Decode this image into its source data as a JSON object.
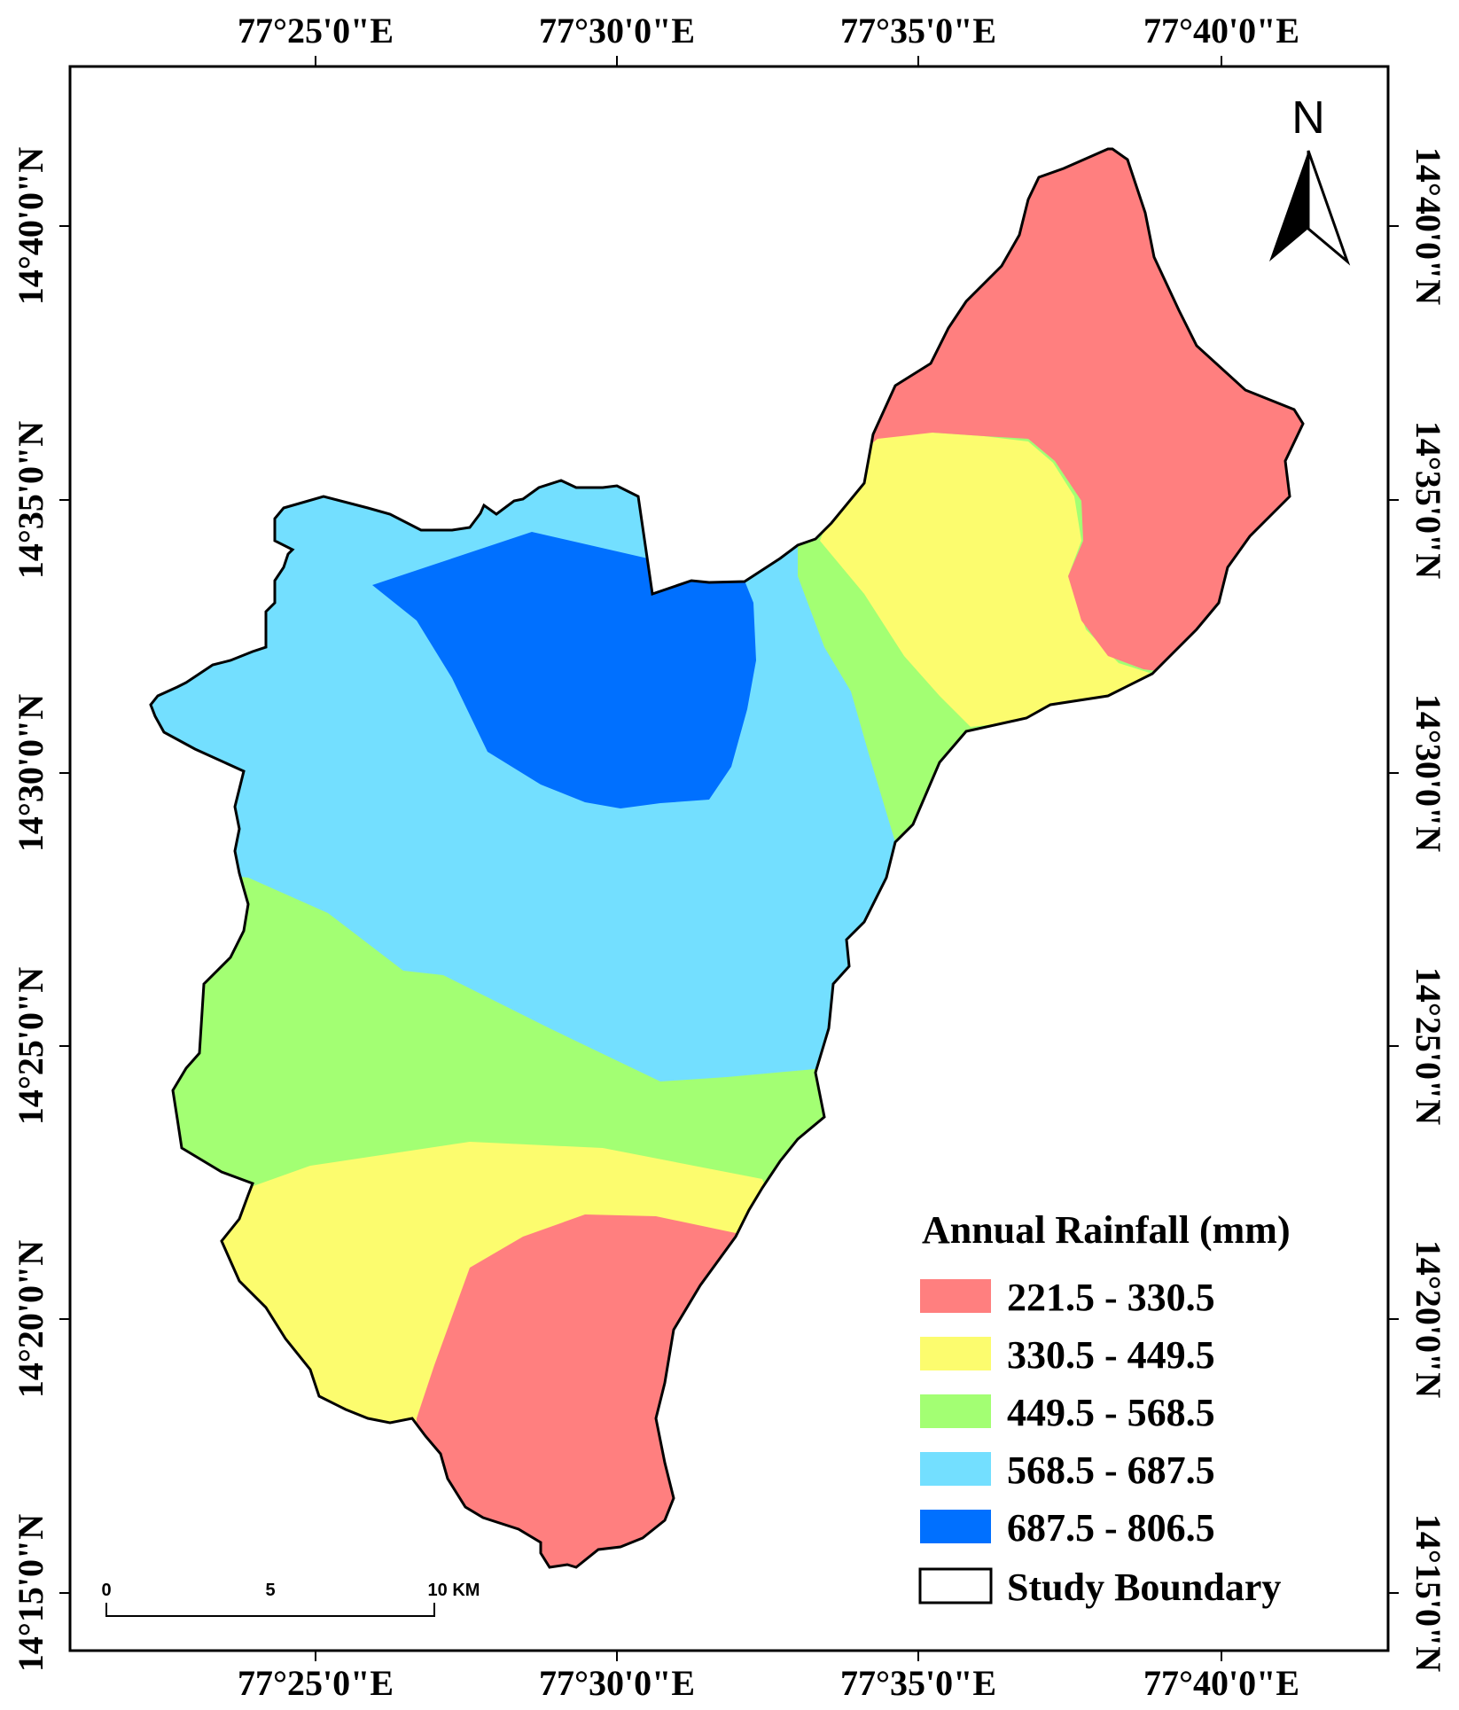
{
  "map": {
    "top_ticks": [
      "77°25'0\"E",
      "77°30'0\"E",
      "77°35'0\"E",
      "77°40'0\"E"
    ],
    "bottom_ticks": [
      "77°25'0\"E",
      "77°30'0\"E",
      "77°35'0\"E",
      "77°40'0\"E"
    ],
    "left_ticks": [
      "14°40'0\"N",
      "14°35'0\"N",
      "14°30'0\"N",
      "14°25'0\"N",
      "14°20'0\"N",
      "14°15'0\"N"
    ],
    "right_ticks": [
      "14°40'0\"N",
      "14°35'0\"N",
      "14°30'0\"N",
      "14°25'0\"N",
      "14°20'0\"N",
      "14°15'0\"N"
    ],
    "north_label": "N",
    "scale": {
      "labels": [
        "0",
        "5",
        "10 KM"
      ]
    }
  },
  "legend": {
    "title": "Annual Rainfall (mm)",
    "items": [
      {
        "label": "221.5 - 330.5",
        "color": "#FF7F7F"
      },
      {
        "label": "330.5 - 449.5",
        "color": "#FCFC6E"
      },
      {
        "label": "449.5 - 568.5",
        "color": "#A3FF73"
      },
      {
        "label": "568.5 - 687.5",
        "color": "#73DFFF"
      },
      {
        "label": "687.5 - 806.5",
        "color": "#0070FF"
      }
    ],
    "boundary_label": "Study Boundary"
  }
}
